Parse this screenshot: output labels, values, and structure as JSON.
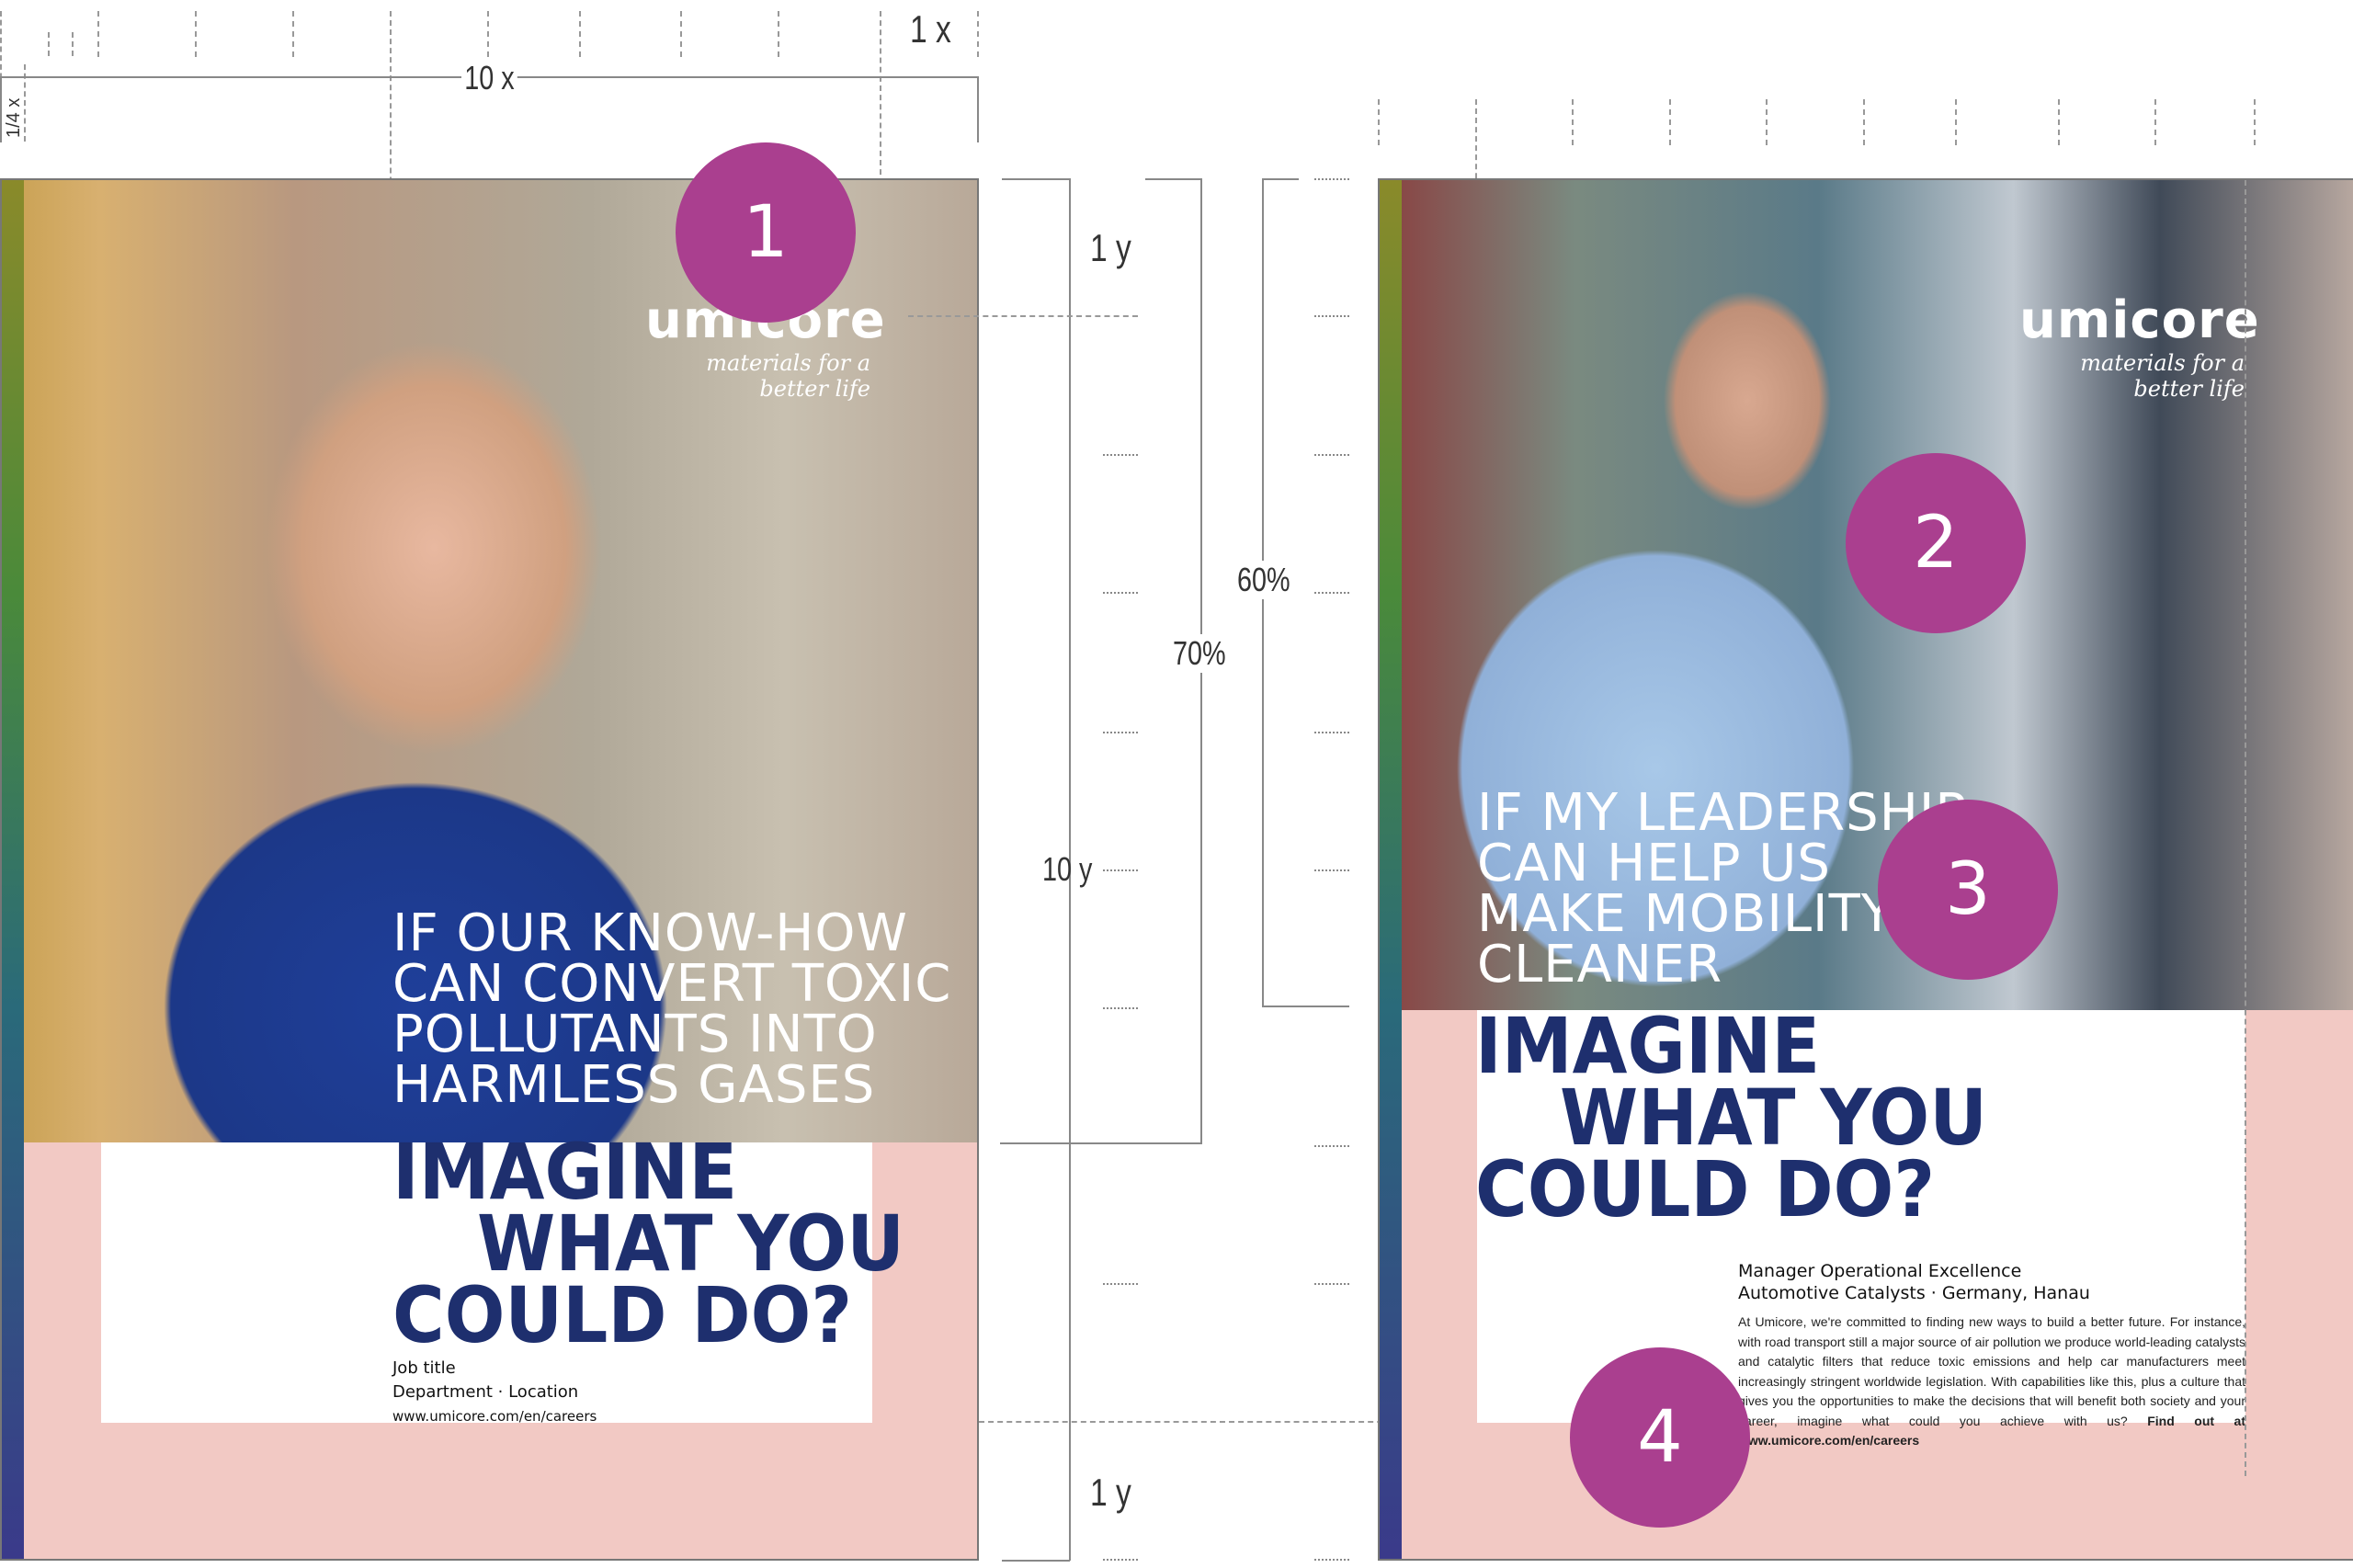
{
  "guides": {
    "top_1x": "1 x",
    "top_10x": "10 x",
    "quarter_x": "1/4 x",
    "top_1y": "1 y",
    "middle_10y": "10 y",
    "pct70": "70%",
    "pct60": "60%",
    "bottom_1y": "1 y"
  },
  "colors": {
    "marker": "#aa3f8f",
    "headline_navy": "#1e2f6e",
    "pink_band": "#f2c9c4"
  },
  "poster_left": {
    "marker": "1",
    "logo": {
      "wordmark": "umicore",
      "tagline": "materials for a better life"
    },
    "headline": [
      "IF OUR KNOW-HOW",
      "CAN CONVERT TOXIC",
      "POLLUTANTS INTO",
      "HARMLESS GASES"
    ],
    "imagine": [
      "IMAGINE",
      "WHAT YOU",
      "COULD DO?"
    ],
    "job_title": "Job title",
    "department": "Department · Location",
    "url": "www.umicore.com/en/careers"
  },
  "poster_right": {
    "markers": [
      "2",
      "3",
      "4"
    ],
    "logo": {
      "wordmark": "umicore",
      "tagline": "materials for a better life"
    },
    "headline": [
      "IF MY LEADERSHIP",
      "CAN HELP US",
      "MAKE MOBILITY",
      "CLEANER"
    ],
    "imagine": [
      "IMAGINE",
      "WHAT YOU",
      "COULD DO?"
    ],
    "job_title": "Manager Operational Excellence",
    "department": "Automotive Catalysts · Germany, Hanau",
    "body": "At Umicore, we're committed to finding new ways to build a better future. For instance, with road transport still a major source of air pollution we produce world-leading catalysts and catalytic filters that reduce toxic emissions and help car manufacturers meet increasingly stringent worldwide legislation. With capabilities like this, plus a culture that gives you the opportunities to make the decisions that will benefit both society and your career, imagine what could you achieve with us?",
    "cta": "Find out at www.umicore.com/en/careers"
  }
}
